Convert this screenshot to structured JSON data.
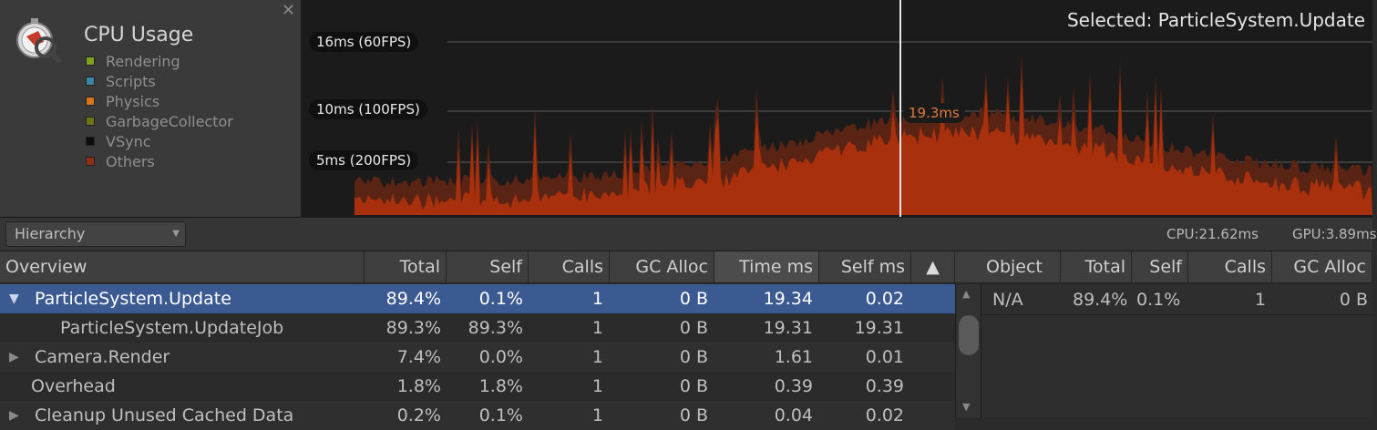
{
  "module": {
    "title": "CPU Usage",
    "close_glyph": "✕",
    "icon": "cpu-profiler-stopwatch-icon",
    "legend": [
      {
        "label": "Rendering",
        "color": "#7ca21e"
      },
      {
        "label": "Scripts",
        "color": "#3c86a6"
      },
      {
        "label": "Physics",
        "color": "#d4751c"
      },
      {
        "label": "GarbageCollector",
        "color": "#707218"
      },
      {
        "label": "VSync",
        "color": "#0c0c0c"
      },
      {
        "label": "Others",
        "color": "#8e2e12"
      }
    ]
  },
  "graph": {
    "selected_label": "Selected: ParticleSystem.Update",
    "reference_lines": [
      "16ms (60FPS)",
      "10ms (100FPS)",
      "5ms (200FPS)"
    ],
    "cursor_value": "19.3ms",
    "colors": {
      "others": "#a8300c",
      "background_layer": "#5a2414",
      "rendering_top": "#3f5a1a"
    }
  },
  "toolbar": {
    "view_dropdown": "Hierarchy",
    "cpu_stat": "CPU:21.62ms",
    "gpu_stat": "GPU:3.89ms"
  },
  "hierarchy": {
    "columns": [
      "Overview",
      "Total",
      "Self",
      "Calls",
      "GC Alloc",
      "Time ms",
      "Self ms",
      "▲"
    ],
    "sorted_column": "Time ms",
    "rows": [
      {
        "name": "ParticleSystem.Update",
        "total": "89.4%",
        "self": "0.1%",
        "calls": "1",
        "gc": "0 B",
        "time": "19.34",
        "self_ms": "0.02",
        "expander": "▼",
        "depth": 0,
        "selected": true
      },
      {
        "name": "ParticleSystem.UpdateJob",
        "total": "89.3%",
        "self": "89.3%",
        "calls": "1",
        "gc": "0 B",
        "time": "19.31",
        "self_ms": "19.31",
        "expander": "",
        "depth": 1,
        "selected": false
      },
      {
        "name": "Camera.Render",
        "total": "7.4%",
        "self": "0.0%",
        "calls": "1",
        "gc": "0 B",
        "time": "1.61",
        "self_ms": "0.01",
        "expander": "▶",
        "depth": 0,
        "selected": false
      },
      {
        "name": "Overhead",
        "total": "1.8%",
        "self": "1.8%",
        "calls": "1",
        "gc": "0 B",
        "time": "0.39",
        "self_ms": "0.39",
        "expander": "",
        "depth": 0,
        "selected": false
      },
      {
        "name": "Cleanup Unused Cached Data",
        "total": "0.2%",
        "self": "0.1%",
        "calls": "1",
        "gc": "0 B",
        "time": "0.04",
        "self_ms": "0.02",
        "expander": "▶",
        "depth": 0,
        "selected": false
      }
    ]
  },
  "details": {
    "columns": [
      "Object",
      "Total",
      "Self",
      "Calls",
      "GC Alloc"
    ],
    "row": {
      "object": "N/A",
      "total": "89.4%",
      "self": "0.1%",
      "calls": "1",
      "gc": "0 B"
    }
  }
}
